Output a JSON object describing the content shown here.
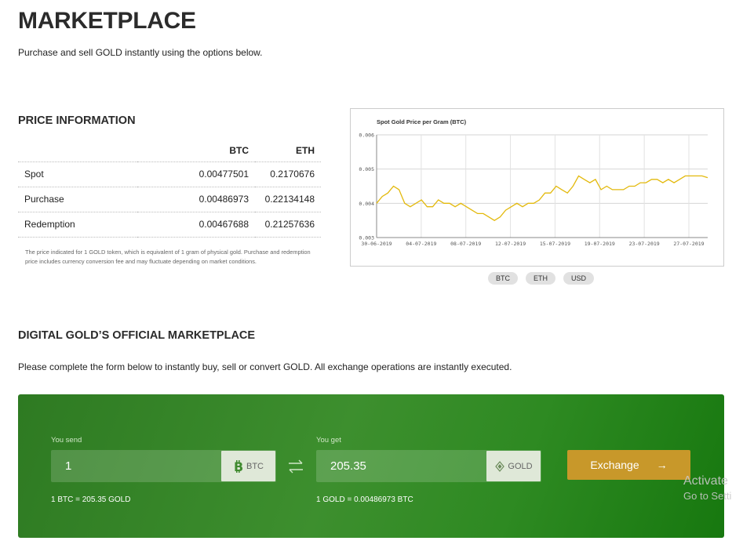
{
  "page": {
    "title": "MARKETPLACE",
    "subtitle": "Purchase and sell GOLD instantly using the options below."
  },
  "price_info": {
    "heading": "PRICE INFORMATION",
    "columns": [
      "BTC",
      "ETH"
    ],
    "rows": [
      {
        "label": "Spot",
        "btc": "0.00477501",
        "eth": "0.2170676"
      },
      {
        "label": "Purchase",
        "btc": "0.00486973",
        "eth": "0.22134148"
      },
      {
        "label": "Redemption",
        "btc": "0.00467688",
        "eth": "0.21257636"
      }
    ],
    "note": "The price indicated for 1 GOLD token, which is equivalent of 1 gram of physical gold. Purchase and redemption price includes currency conversion fee and may fluctuate depending on market conditions."
  },
  "chart_data": {
    "type": "line",
    "title": "Spot Gold Price per Gram (BTC)",
    "xlabel": "",
    "ylabel": "",
    "ylim": [
      0.003,
      0.006
    ],
    "yticks": [
      "0.006",
      "0.005",
      "0.004",
      "0.003"
    ],
    "xticks": [
      "30-06-2019",
      "04-07-2019",
      "08-07-2019",
      "12-07-2019",
      "15-07-2019",
      "19-07-2019",
      "23-07-2019",
      "27-07-2019"
    ],
    "grid": true,
    "line_color": "#e3b90c",
    "series": [
      {
        "values": [
          0.004,
          0.0042,
          0.0043,
          0.0045,
          0.0044,
          0.004,
          0.0039,
          0.004,
          0.0041,
          0.0039,
          0.0039,
          0.0041,
          0.004,
          0.004,
          0.0039,
          0.004,
          0.0039,
          0.0038,
          0.0037,
          0.0037,
          0.0036,
          0.0035,
          0.0036,
          0.0038,
          0.0039,
          0.004,
          0.0039,
          0.004,
          0.004,
          0.0041,
          0.0043,
          0.0043,
          0.0045,
          0.0044,
          0.0043,
          0.0045,
          0.0048,
          0.0047,
          0.0046,
          0.0047,
          0.0044,
          0.0045,
          0.0044,
          0.0044,
          0.0044,
          0.0045,
          0.0045,
          0.0046,
          0.0046,
          0.0047,
          0.0047,
          0.0046,
          0.0047,
          0.0046,
          0.0047,
          0.0048,
          0.0048,
          0.0048,
          0.0048,
          0.00475
        ]
      }
    ]
  },
  "currency_pills": [
    "BTC",
    "ETH",
    "USD"
  ],
  "marketplace": {
    "heading": "DIGITAL GOLD’S OFFICIAL MARKETPLACE",
    "description": "Please complete the form below to instantly buy, sell or convert GOLD. All exchange operations are instantly executed.",
    "send": {
      "label": "You send",
      "value": "1",
      "currency": "BTC",
      "rate": "1 BTC = 205.35 GOLD"
    },
    "get": {
      "label": "You get",
      "value": "205.35",
      "currency": "GOLD",
      "rate": "1 GOLD = 0.00486973 BTC"
    },
    "exchange_label": "Exchange",
    "arrow": "→",
    "colors": {
      "panel": "#3d8f2e",
      "button": "#c8982a"
    }
  },
  "overlay": {
    "line1": "Activate",
    "line2": "Go to Setti"
  }
}
